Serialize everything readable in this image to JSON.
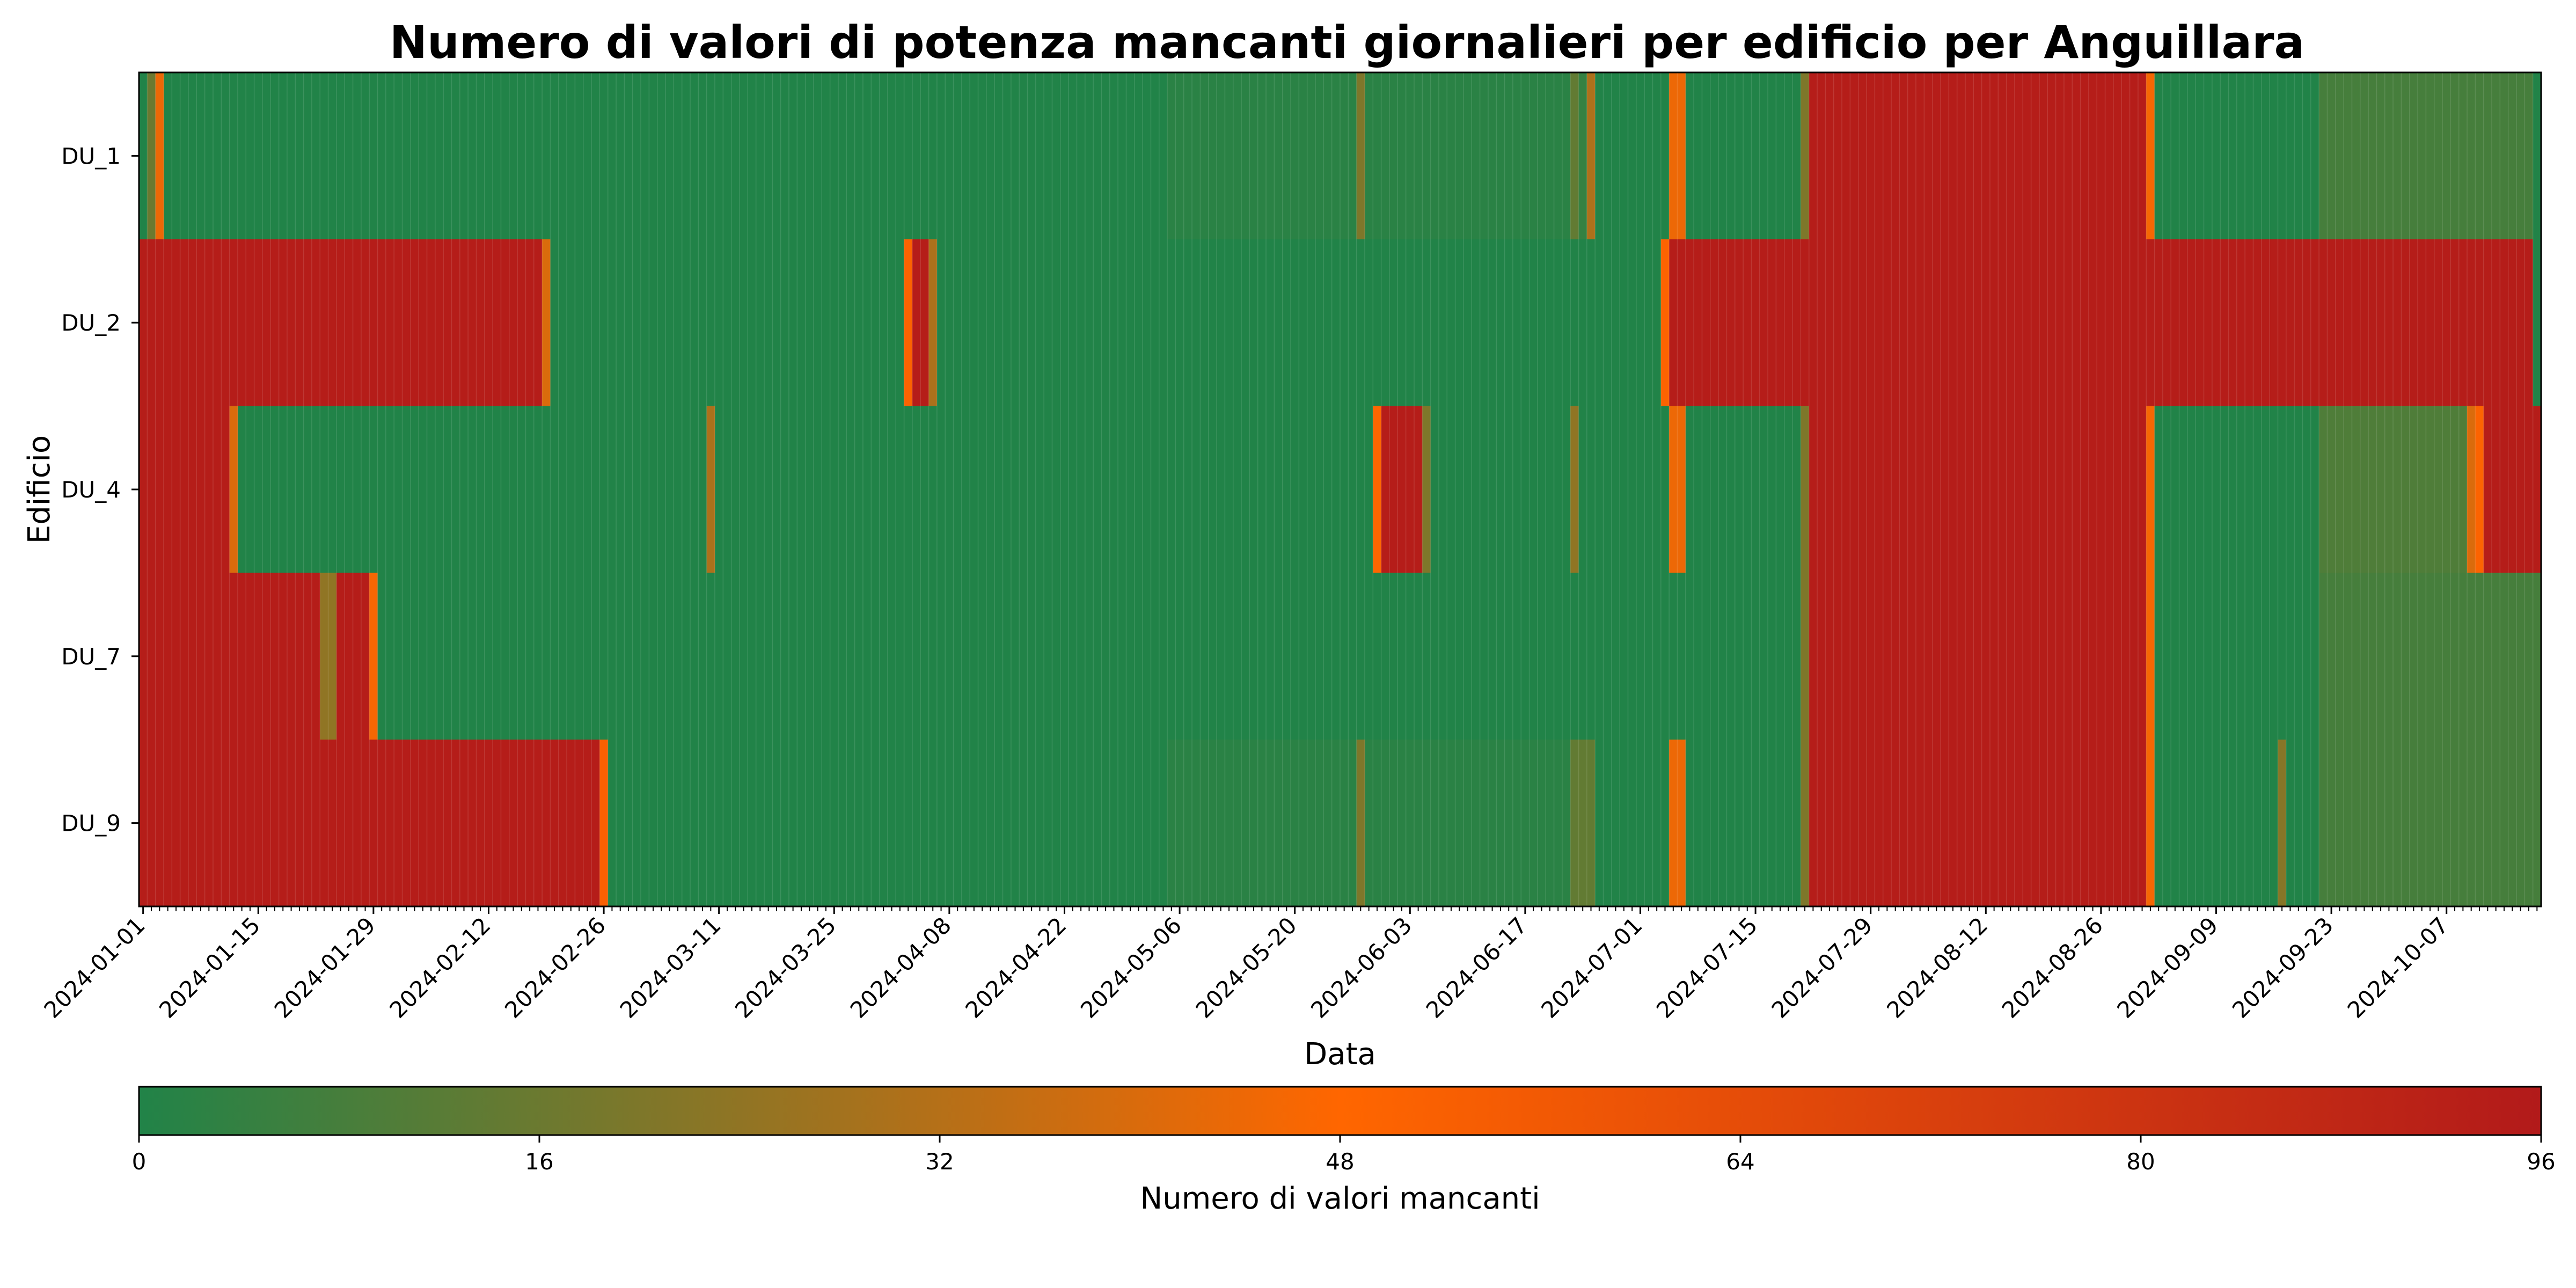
{
  "chart_data": {
    "type": "heatmap",
    "title": "Numero di valori di potenza mancanti giornalieri per edificio per Anguillara",
    "xlabel": "Data",
    "ylabel": "Edificio",
    "x_start": "2024-01-01",
    "x_end": "2024-10-18",
    "x_ticks": [
      "2024-01-01",
      "2024-01-15",
      "2024-01-29",
      "2024-02-12",
      "2024-02-26",
      "2024-03-11",
      "2024-03-25",
      "2024-04-08",
      "2024-04-22",
      "2024-05-06",
      "2024-05-20",
      "2024-06-03",
      "2024-06-17",
      "2024-07-01",
      "2024-07-15",
      "2024-07-29",
      "2024-08-12",
      "2024-08-26",
      "2024-09-09",
      "2024-09-23",
      "2024-10-07"
    ],
    "rows": [
      "DU_1",
      "DU_2",
      "DU_4",
      "DU_7",
      "DU_9"
    ],
    "colorbar": {
      "label": "Numero di valori mancanti",
      "min": 0,
      "max": 96,
      "ticks": [
        0,
        16,
        32,
        48,
        64,
        80,
        96
      ],
      "colors": [
        "#218348",
        "#ff6600",
        "#b21a1a"
      ]
    },
    "segments": {
      "DU_1": [
        {
          "from": "2024-01-01",
          "to": "2024-01-01",
          "value": 0
        },
        {
          "from": "2024-01-02",
          "to": "2024-01-02",
          "value": 16
        },
        {
          "from": "2024-01-03",
          "to": "2024-01-03",
          "value": 44
        },
        {
          "from": "2024-01-04",
          "to": "2024-05-04",
          "value": 0
        },
        {
          "from": "2024-05-05",
          "to": "2024-05-27",
          "value": 2
        },
        {
          "from": "2024-05-28",
          "to": "2024-05-28",
          "value": 20
        },
        {
          "from": "2024-05-29",
          "to": "2024-06-22",
          "value": 2
        },
        {
          "from": "2024-06-23",
          "to": "2024-06-23",
          "value": 14
        },
        {
          "from": "2024-06-24",
          "to": "2024-06-24",
          "value": 4
        },
        {
          "from": "2024-06-25",
          "to": "2024-06-25",
          "value": 30
        },
        {
          "from": "2024-06-26",
          "to": "2024-07-04",
          "value": 0
        },
        {
          "from": "2024-07-05",
          "to": "2024-07-06",
          "value": 44
        },
        {
          "from": "2024-07-07",
          "to": "2024-07-20",
          "value": 0
        },
        {
          "from": "2024-07-21",
          "to": "2024-07-21",
          "value": 20
        },
        {
          "from": "2024-07-22",
          "to": "2024-08-31",
          "value": 94
        },
        {
          "from": "2024-09-01",
          "to": "2024-09-01",
          "value": 46
        },
        {
          "from": "2024-09-02",
          "to": "2024-09-21",
          "value": 0
        },
        {
          "from": "2024-09-22",
          "to": "2024-10-17",
          "value": 8
        },
        {
          "from": "2024-10-18",
          "to": "2024-10-18",
          "value": 0
        }
      ],
      "DU_2": [
        {
          "from": "2024-01-01",
          "to": "2024-02-18",
          "value": 94
        },
        {
          "from": "2024-02-19",
          "to": "2024-02-19",
          "value": 40
        },
        {
          "from": "2024-02-20",
          "to": "2024-04-02",
          "value": 0
        },
        {
          "from": "2024-04-03",
          "to": "2024-04-03",
          "value": 50
        },
        {
          "from": "2024-04-04",
          "to": "2024-04-05",
          "value": 94
        },
        {
          "from": "2024-04-06",
          "to": "2024-04-06",
          "value": 30
        },
        {
          "from": "2024-04-07",
          "to": "2024-07-03",
          "value": 0
        },
        {
          "from": "2024-07-04",
          "to": "2024-07-04",
          "value": 50
        },
        {
          "from": "2024-07-05",
          "to": "2024-10-17",
          "value": 94
        },
        {
          "from": "2024-10-18",
          "to": "2024-10-18",
          "value": 0
        }
      ],
      "DU_4": [
        {
          "from": "2024-01-01",
          "to": "2024-01-11",
          "value": 94
        },
        {
          "from": "2024-01-12",
          "to": "2024-01-12",
          "value": 40
        },
        {
          "from": "2024-01-13",
          "to": "2024-03-09",
          "value": 0
        },
        {
          "from": "2024-03-10",
          "to": "2024-03-10",
          "value": 30
        },
        {
          "from": "2024-03-11",
          "to": "2024-05-29",
          "value": 0
        },
        {
          "from": "2024-05-30",
          "to": "2024-05-30",
          "value": 48
        },
        {
          "from": "2024-05-31",
          "to": "2024-06-04",
          "value": 94
        },
        {
          "from": "2024-06-05",
          "to": "2024-06-05",
          "value": 20
        },
        {
          "from": "2024-06-06",
          "to": "2024-06-22",
          "value": 0
        },
        {
          "from": "2024-06-23",
          "to": "2024-06-23",
          "value": 24
        },
        {
          "from": "2024-06-24",
          "to": "2024-07-04",
          "value": 0
        },
        {
          "from": "2024-07-05",
          "to": "2024-07-06",
          "value": 44
        },
        {
          "from": "2024-07-07",
          "to": "2024-07-20",
          "value": 0
        },
        {
          "from": "2024-07-21",
          "to": "2024-07-21",
          "value": 20
        },
        {
          "from": "2024-07-22",
          "to": "2024-08-31",
          "value": 94
        },
        {
          "from": "2024-09-01",
          "to": "2024-09-01",
          "value": 46
        },
        {
          "from": "2024-09-02",
          "to": "2024-09-21",
          "value": 0
        },
        {
          "from": "2024-09-22",
          "to": "2024-10-09",
          "value": 10
        },
        {
          "from": "2024-10-10",
          "to": "2024-10-10",
          "value": 40
        },
        {
          "from": "2024-10-11",
          "to": "2024-10-11",
          "value": 50
        },
        {
          "from": "2024-10-12",
          "to": "2024-10-18",
          "value": 94
        }
      ],
      "DU_7": [
        {
          "from": "2024-01-01",
          "to": "2024-01-22",
          "value": 94
        },
        {
          "from": "2024-01-23",
          "to": "2024-01-24",
          "value": 24
        },
        {
          "from": "2024-01-25",
          "to": "2024-01-28",
          "value": 94
        },
        {
          "from": "2024-01-29",
          "to": "2024-01-29",
          "value": 46
        },
        {
          "from": "2024-01-30",
          "to": "2024-07-20",
          "value": 0
        },
        {
          "from": "2024-07-21",
          "to": "2024-07-21",
          "value": 20
        },
        {
          "from": "2024-07-22",
          "to": "2024-08-31",
          "value": 94
        },
        {
          "from": "2024-09-01",
          "to": "2024-09-01",
          "value": 46
        },
        {
          "from": "2024-09-02",
          "to": "2024-09-21",
          "value": 0
        },
        {
          "from": "2024-09-22",
          "to": "2024-10-18",
          "value": 8
        }
      ],
      "DU_9": [
        {
          "from": "2024-01-01",
          "to": "2024-02-25",
          "value": 94
        },
        {
          "from": "2024-02-26",
          "to": "2024-02-26",
          "value": 52
        },
        {
          "from": "2024-02-27",
          "to": "2024-05-04",
          "value": 0
        },
        {
          "from": "2024-05-05",
          "to": "2024-05-27",
          "value": 2
        },
        {
          "from": "2024-05-28",
          "to": "2024-05-28",
          "value": 20
        },
        {
          "from": "2024-05-29",
          "to": "2024-06-22",
          "value": 2
        },
        {
          "from": "2024-06-23",
          "to": "2024-06-25",
          "value": 14
        },
        {
          "from": "2024-06-26",
          "to": "2024-07-04",
          "value": 0
        },
        {
          "from": "2024-07-05",
          "to": "2024-07-06",
          "value": 44
        },
        {
          "from": "2024-07-07",
          "to": "2024-07-20",
          "value": 0
        },
        {
          "from": "2024-07-21",
          "to": "2024-07-21",
          "value": 20
        },
        {
          "from": "2024-07-22",
          "to": "2024-08-31",
          "value": 94
        },
        {
          "from": "2024-09-01",
          "to": "2024-09-01",
          "value": 46
        },
        {
          "from": "2024-09-02",
          "to": "2024-09-16",
          "value": 0
        },
        {
          "from": "2024-09-17",
          "to": "2024-09-17",
          "value": 22
        },
        {
          "from": "2024-09-18",
          "to": "2024-09-21",
          "value": 0
        },
        {
          "from": "2024-09-22",
          "to": "2024-10-18",
          "value": 8
        }
      ]
    }
  }
}
